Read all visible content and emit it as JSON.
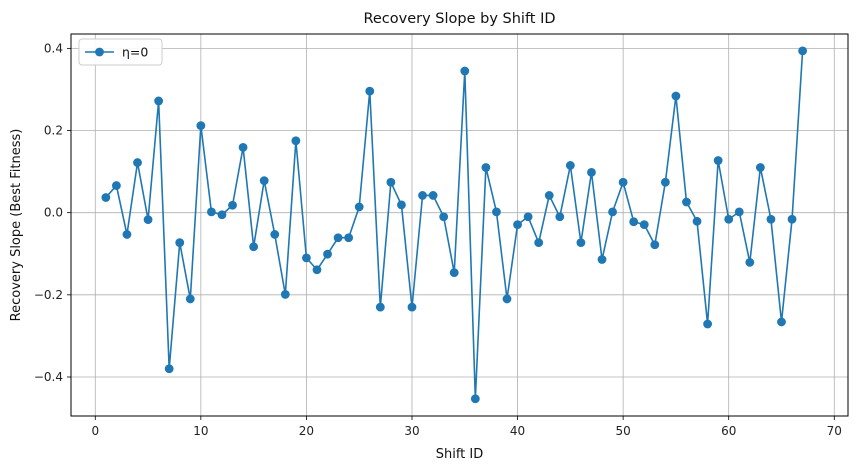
{
  "chart_data": {
    "type": "line",
    "title": "Recovery Slope by Shift ID",
    "xlabel": "Shift ID",
    "ylabel": "Recovery Slope (Best Fitness)",
    "xlim": [
      -2.3,
      71.3
    ],
    "ylim": [
      -0.495,
      0.435
    ],
    "xticks": [
      0,
      10,
      20,
      30,
      40,
      50,
      60,
      70
    ],
    "yticks": [
      -0.4,
      -0.2,
      0.0,
      0.2,
      0.4
    ],
    "xtick_labels": [
      "0",
      "10",
      "20",
      "30",
      "40",
      "50",
      "60",
      "70"
    ],
    "ytick_labels": [
      "−0.4",
      "−0.2",
      "0.0",
      "0.2",
      "0.4"
    ],
    "grid": true,
    "legend_position": "top-left",
    "series": [
      {
        "name": "η=0",
        "color": "#1f77b4",
        "marker": "circle",
        "x": [
          1,
          2,
          3,
          4,
          5,
          6,
          7,
          8,
          9,
          10,
          11,
          12,
          13,
          14,
          15,
          16,
          17,
          18,
          19,
          20,
          21,
          22,
          23,
          24,
          25,
          26,
          27,
          28,
          29,
          30,
          31,
          32,
          33,
          34,
          35,
          36,
          37,
          38,
          39,
          40,
          41,
          42,
          43,
          44,
          45,
          46,
          47,
          48,
          49,
          50,
          51,
          52,
          53,
          54,
          55,
          56,
          57,
          58,
          59,
          60,
          61,
          62,
          63,
          64,
          65,
          66,
          67
        ],
        "y": [
          0.037,
          0.066,
          -0.053,
          0.122,
          -0.017,
          0.272,
          -0.38,
          -0.073,
          -0.21,
          0.212,
          0.002,
          -0.005,
          0.018,
          0.159,
          -0.083,
          0.078,
          -0.053,
          -0.199,
          0.175,
          -0.11,
          -0.139,
          -0.101,
          -0.061,
          -0.061,
          0.014,
          0.296,
          -0.23,
          0.074,
          0.019,
          -0.23,
          0.042,
          0.042,
          -0.01,
          -0.146,
          0.345,
          -0.453,
          0.11,
          0.002,
          -0.21,
          -0.029,
          -0.01,
          -0.073,
          0.042,
          -0.01,
          0.115,
          -0.073,
          0.098,
          -0.114,
          0.002,
          0.074,
          -0.022,
          -0.029,
          -0.078,
          0.074,
          0.284,
          0.026,
          -0.021,
          -0.271,
          0.127,
          -0.016,
          0.002,
          -0.121,
          0.11,
          -0.016,
          -0.266,
          -0.016,
          0.394
        ]
      }
    ]
  }
}
